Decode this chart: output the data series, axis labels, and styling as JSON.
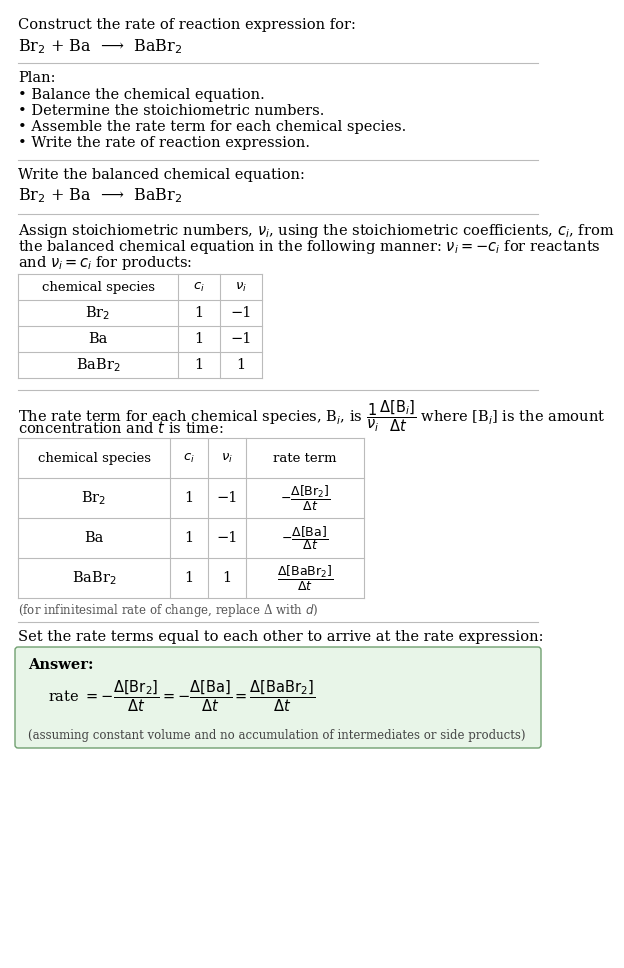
{
  "bg_color": "#ffffff",
  "title_line1": "Construct the rate of reaction expression for:",
  "reaction_header": "Br$_2$ + Ba  ⟶  BaBr$_2$",
  "plan_title": "Plan:",
  "plan_bullets": [
    "• Balance the chemical equation.",
    "• Determine the stoichiometric numbers.",
    "• Assemble the rate term for each chemical species.",
    "• Write the rate of reaction expression."
  ],
  "balanced_eq_header": "Write the balanced chemical equation:",
  "balanced_eq": "Br$_2$ + Ba  ⟶  BaBr$_2$",
  "stoich_intro_lines": [
    "Assign stoichiometric numbers, $\\nu_i$, using the stoichiometric coefficients, $c_i$, from",
    "the balanced chemical equation in the following manner: $\\nu_i = -c_i$ for reactants",
    "and $\\nu_i = c_i$ for products:"
  ],
  "table1_headers": [
    "chemical species",
    "$c_i$",
    "$\\nu_i$"
  ],
  "table1_rows": [
    [
      "Br$_2$",
      "1",
      "−1"
    ],
    [
      "Ba",
      "1",
      "−1"
    ],
    [
      "BaBr$_2$",
      "1",
      "1"
    ]
  ],
  "rate_term_intro1": "The rate term for each chemical species, B$_i$, is $\\dfrac{1}{\\nu_i}\\dfrac{\\Delta[\\mathrm{B}_i]}{\\Delta t}$ where [B$_i$] is the amount",
  "rate_term_intro2": "concentration and $t$ is time:",
  "table2_headers": [
    "chemical species",
    "$c_i$",
    "$\\nu_i$",
    "rate term"
  ],
  "table2_rows": [
    [
      "Br$_2$",
      "1",
      "−1",
      "$-\\dfrac{\\Delta[\\mathrm{Br}_2]}{\\Delta t}$"
    ],
    [
      "Ba",
      "1",
      "−1",
      "$-\\dfrac{\\Delta[\\mathrm{Ba}]}{\\Delta t}$"
    ],
    [
      "BaBr$_2$",
      "1",
      "1",
      "$\\dfrac{\\Delta[\\mathrm{BaBr}_2]}{\\Delta t}$"
    ]
  ],
  "infinitesimal_note": "(for infinitesimal rate of change, replace Δ with $d$)",
  "set_equal_text": "Set the rate terms equal to each other to arrive at the rate expression:",
  "answer_box_color": "#e8f5e8",
  "answer_border_color": "#70a070",
  "answer_label": "Answer:",
  "answer_rate": "rate $= -\\dfrac{\\Delta[\\mathrm{Br}_2]}{\\Delta t} = -\\dfrac{\\Delta[\\mathrm{Ba}]}{\\Delta t} = \\dfrac{\\Delta[\\mathrm{BaBr}_2]}{\\Delta t}$",
  "answer_note": "(assuming constant volume and no accumulation of intermediates or side products)",
  "sep_color": "#bbbbbb",
  "font_family": "DejaVu Serif"
}
